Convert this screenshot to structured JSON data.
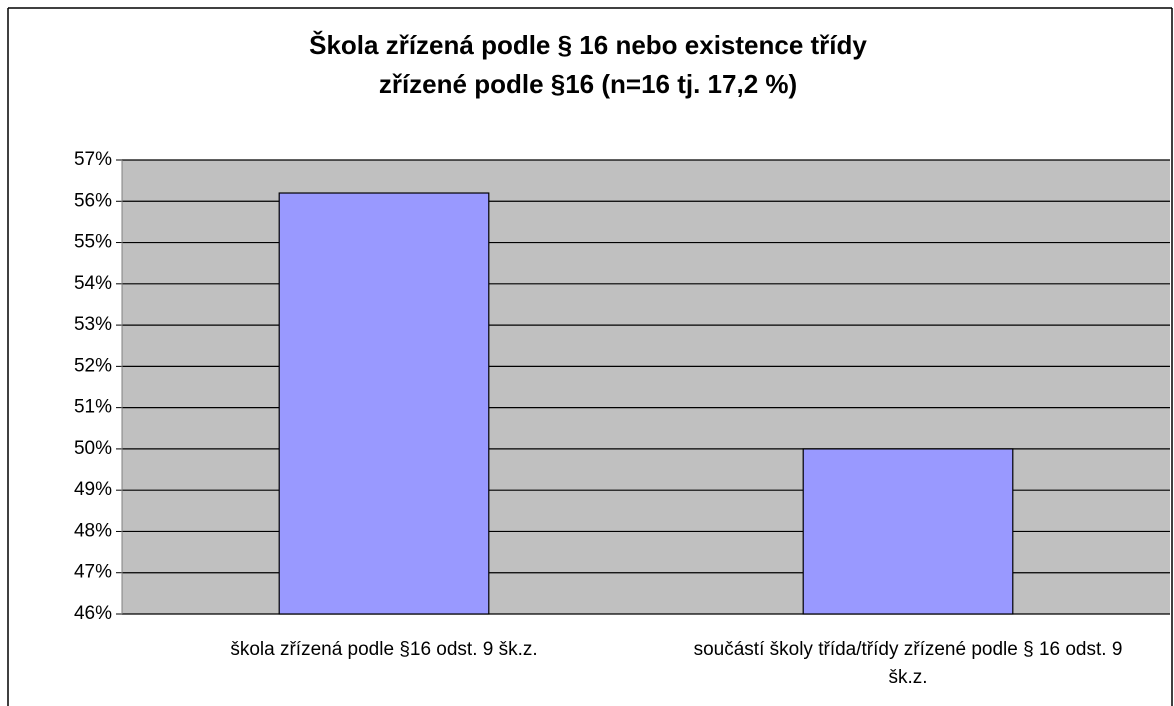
{
  "chart_data": {
    "type": "bar",
    "title": [
      "Škola zřízená podle § 16 nebo existence třídy",
      "zřízené podle §16 (n=16 tj. 17,2 %)"
    ],
    "categories": [
      "škola zřízená podle §16 odst. 9 šk.z.",
      "součástí školy třída/třídy zřízené podle § 16 odst. 9 šk.z."
    ],
    "values": [
      56.2,
      50
    ],
    "color": "#9999ff",
    "ylim": [
      46,
      57
    ],
    "yticks": [
      {
        "value": 46,
        "label": "46%"
      },
      {
        "value": 47,
        "label": "47%"
      },
      {
        "value": 48,
        "label": "48%"
      },
      {
        "value": 49,
        "label": "49%"
      },
      {
        "value": 50,
        "label": "50%"
      },
      {
        "value": 51,
        "label": "51%"
      },
      {
        "value": 52,
        "label": "52%"
      },
      {
        "value": 53,
        "label": "53%"
      },
      {
        "value": 54,
        "label": "54%"
      },
      {
        "value": 55,
        "label": "55%"
      },
      {
        "value": 56,
        "label": "56%"
      },
      {
        "value": 57,
        "label": "57%"
      }
    ],
    "grid": true
  }
}
